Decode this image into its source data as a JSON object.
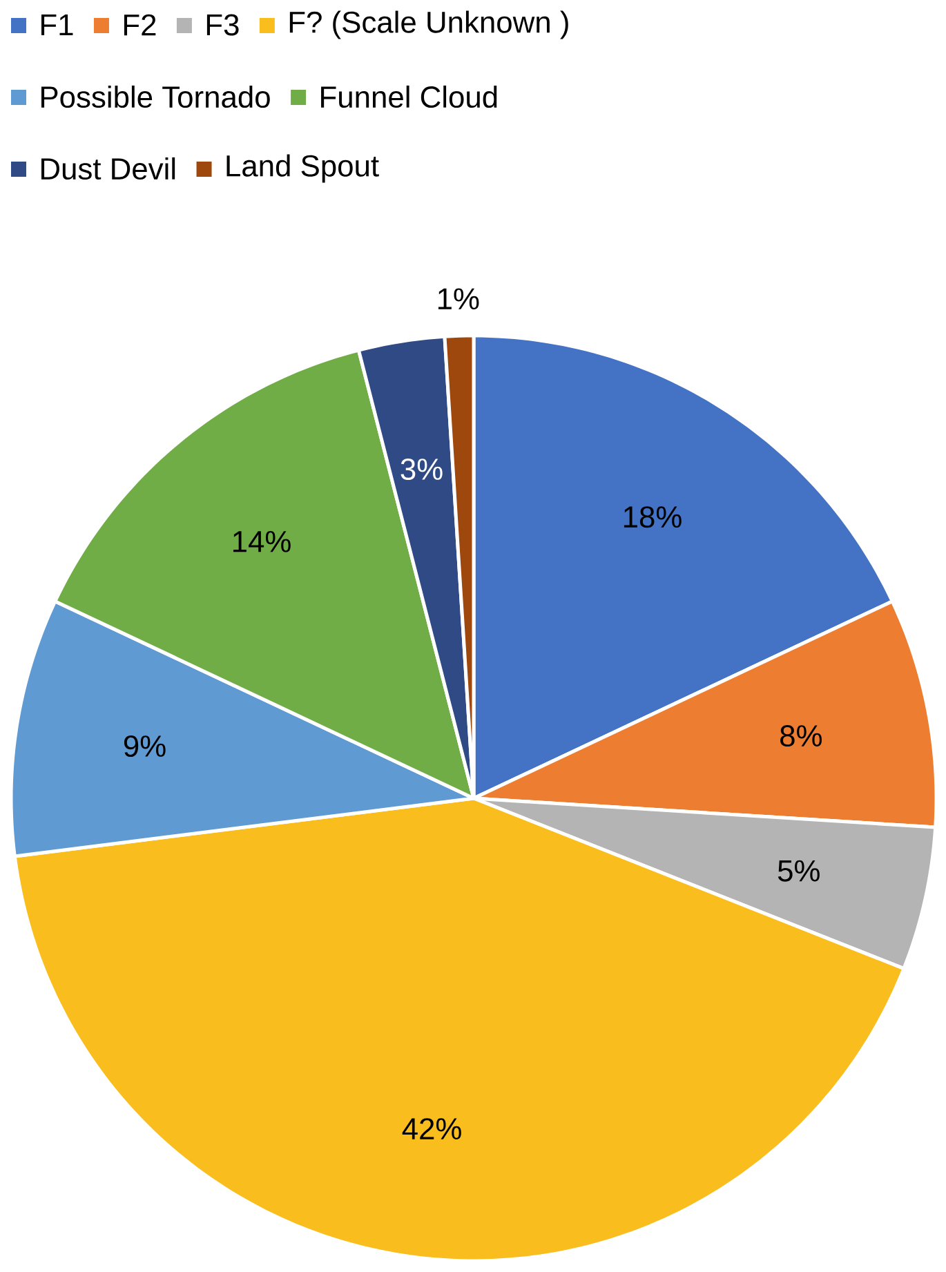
{
  "chart_data": {
    "type": "pie",
    "legend": "top",
    "categories": [
      "F1",
      "F2",
      "F3",
      "F? (Scale Unknown )",
      "Possible Tornado",
      "Funnel Cloud",
      "Dust Devil",
      "Land Spout"
    ],
    "values": [
      18,
      8,
      5,
      42,
      9,
      14,
      3,
      1
    ],
    "value_labels": [
      "18%",
      "8%",
      "5%",
      "42%",
      "9%",
      "14%",
      "3%",
      "1%"
    ],
    "colors": [
      "#4472c4",
      "#ed7d31",
      "#b4b4b4",
      "#f9be1e",
      "#5f9bd2",
      "#70ad47",
      "#2f4a85",
      "#9e480e"
    ]
  }
}
